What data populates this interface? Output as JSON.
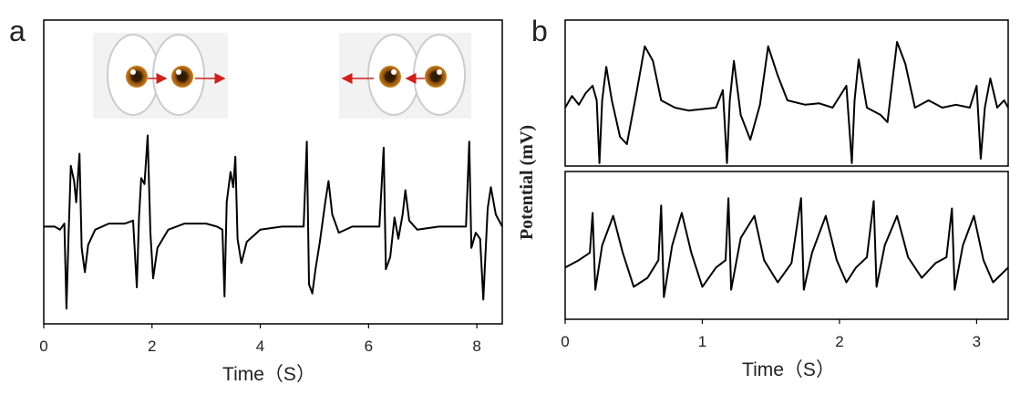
{
  "chart_data": [
    {
      "type": "line",
      "label": "a",
      "xlabel": "Time（S）",
      "xlim": [
        0,
        8.47
      ],
      "ylim": [
        0,
        100
      ],
      "xticks": [
        0,
        2,
        4,
        6,
        8
      ],
      "color": "#000000",
      "x": [
        0.0,
        0.2,
        0.3,
        0.38,
        0.42,
        0.46,
        0.5,
        0.56,
        0.6,
        0.66,
        0.7,
        0.76,
        0.82,
        0.95,
        1.2,
        1.5,
        1.65,
        1.72,
        1.76,
        1.8,
        1.86,
        1.92,
        1.97,
        2.02,
        2.1,
        2.3,
        2.6,
        3.0,
        3.2,
        3.3,
        3.34,
        3.38,
        3.45,
        3.5,
        3.54,
        3.58,
        3.65,
        3.75,
        4.0,
        4.4,
        4.8,
        4.86,
        4.9,
        4.96,
        5.02,
        5.1,
        5.2,
        5.26,
        5.33,
        5.45,
        5.7,
        6.2,
        6.28,
        6.32,
        6.4,
        6.48,
        6.55,
        6.63,
        6.68,
        6.75,
        6.9,
        7.3,
        7.8,
        7.86,
        7.9,
        7.98,
        8.06,
        8.12,
        8.2,
        8.26,
        8.35,
        8.47
      ],
      "values": [
        32,
        32,
        31,
        33,
        5,
        30,
        52,
        47,
        40,
        56,
        25,
        17,
        26,
        31,
        33,
        33,
        34,
        12,
        35,
        48,
        46,
        62,
        30,
        15,
        25,
        31,
        33,
        33,
        32,
        31,
        9,
        40,
        50,
        45,
        55,
        28,
        20,
        27,
        31,
        32,
        32,
        60,
        13,
        10,
        18,
        27,
        40,
        47,
        36,
        30,
        32,
        32,
        58,
        18,
        22,
        35,
        28,
        36,
        44,
        34,
        31,
        32,
        32,
        60,
        25,
        30,
        28,
        8,
        38,
        45,
        36,
        32
      ]
    },
    {
      "type": "line",
      "label": "b",
      "ylabel": "Potential (mV)",
      "xlim": [
        0,
        3.23
      ],
      "ylim": [
        0,
        100
      ],
      "color": "#000000",
      "x": [
        0.0,
        0.05,
        0.1,
        0.15,
        0.2,
        0.23,
        0.25,
        0.27,
        0.3,
        0.34,
        0.4,
        0.45,
        0.52,
        0.58,
        0.64,
        0.7,
        0.8,
        0.9,
        1.0,
        1.1,
        1.15,
        1.18,
        1.2,
        1.23,
        1.28,
        1.35,
        1.42,
        1.48,
        1.55,
        1.62,
        1.75,
        1.85,
        1.95,
        2.05,
        2.09,
        2.11,
        2.14,
        2.2,
        2.3,
        2.35,
        2.42,
        2.48,
        2.55,
        2.65,
        2.75,
        2.85,
        2.95,
        3.0,
        3.03,
        3.06,
        3.1,
        3.15,
        3.2,
        3.23
      ],
      "values": [
        40,
        48,
        42,
        50,
        55,
        45,
        2,
        45,
        68,
        45,
        20,
        15,
        50,
        82,
        72,
        45,
        40,
        38,
        39,
        40,
        52,
        2,
        45,
        72,
        35,
        18,
        42,
        82,
        62,
        45,
        42,
        43,
        40,
        55,
        2,
        45,
        73,
        40,
        35,
        30,
        85,
        70,
        40,
        45,
        40,
        42,
        40,
        55,
        5,
        40,
        60,
        40,
        45,
        40
      ]
    },
    {
      "type": "line",
      "xlabel": "Time（S）",
      "xlim": [
        0,
        3.23
      ],
      "ylim": [
        0,
        100
      ],
      "xticks": [
        0,
        1,
        2,
        3
      ],
      "color": "#000000",
      "x": [
        0,
        0.1,
        0.18,
        0.2,
        0.22,
        0.27,
        0.35,
        0.42,
        0.5,
        0.6,
        0.68,
        0.7,
        0.72,
        0.78,
        0.85,
        0.92,
        1.0,
        1.1,
        1.17,
        1.19,
        1.21,
        1.28,
        1.38,
        1.45,
        1.55,
        1.65,
        1.72,
        1.74,
        1.8,
        1.9,
        1.98,
        2.05,
        2.12,
        2.2,
        2.25,
        2.27,
        2.33,
        2.42,
        2.5,
        2.6,
        2.7,
        2.78,
        2.82,
        2.84,
        2.9,
        2.98,
        3.05,
        3.12,
        3.23
      ],
      "values": [
        35,
        40,
        45,
        72,
        20,
        50,
        70,
        45,
        22,
        28,
        40,
        77,
        15,
        50,
        72,
        45,
        22,
        35,
        40,
        82,
        20,
        55,
        70,
        40,
        25,
        38,
        82,
        20,
        45,
        70,
        40,
        25,
        35,
        42,
        80,
        22,
        50,
        70,
        42,
        28,
        38,
        42,
        75,
        20,
        50,
        70,
        40,
        25,
        35
      ]
    }
  ]
}
